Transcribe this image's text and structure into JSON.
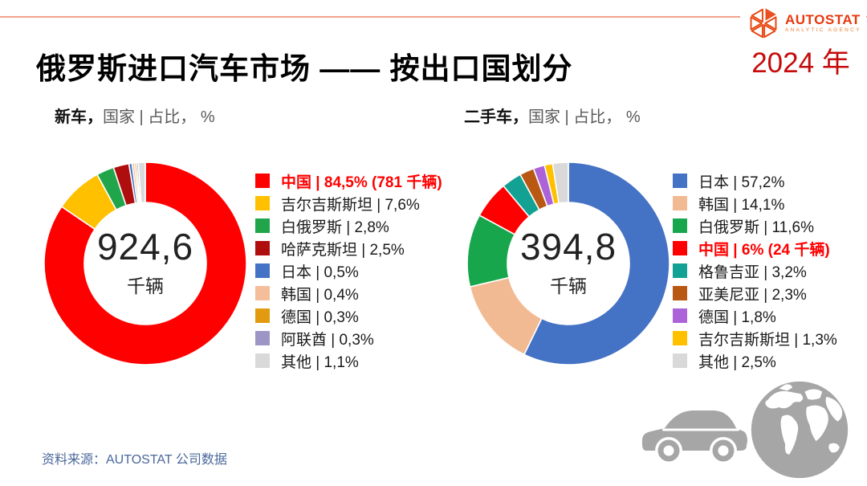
{
  "header": {
    "title": "俄罗斯进口汽车市场 —— 按出口国划分",
    "year": "2024 年",
    "logo": {
      "name": "AUTOSTAT",
      "subtitle": "ANALYTIC AGENCY"
    }
  },
  "footer": {
    "source": "资料来源：AUTOSTAT 公司数据"
  },
  "colors": {
    "accent_red": "#C50B0B",
    "top_line": "#F2A28C",
    "logo_red": "#E8380D",
    "logo_orange": "#F07D30",
    "icon_gray": "#A6A6A6",
    "source_text": "#4A679B",
    "header_gray": "#595959",
    "legend_text": "#1A1A1A",
    "highlight_red": "#FF0000"
  },
  "chart_data": [
    {
      "type": "pie",
      "variant": "donut",
      "header_bold": "新车，",
      "header_rest": "国家 | 占比， %",
      "center_value": "924,6",
      "center_unit": "千辆",
      "start_angle": "12-oclock",
      "direction": "clockwise",
      "legend_position": "right",
      "categories": [
        "中国",
        "吉尔吉斯斯坦",
        "白俄罗斯",
        "哈萨克斯坦",
        "日本",
        "韩国",
        "德国",
        "阿联酋",
        "其他"
      ],
      "values": [
        84.5,
        7.6,
        2.8,
        2.5,
        0.5,
        0.4,
        0.3,
        0.3,
        1.1
      ],
      "legend_labels": [
        "中国 |  84,5% (781 千辆)",
        "吉尔吉斯斯坦 |  7,6%",
        "白俄罗斯 |  2,8%",
        "哈萨克斯坦 |  2,5%",
        "日本 |  0,5%",
        "韩国 |  0,4%",
        "德国 |  0,3%",
        "阿联酋 |  0,3%",
        "其他 |  1,1%"
      ],
      "colors": [
        "#FF0000",
        "#FFC000",
        "#21A54A",
        "#AE0E0E",
        "#4472C4",
        "#F5BE9B",
        "#E29B11",
        "#9E95C7",
        "#D9D9D9"
      ],
      "highlight_index": 0
    },
    {
      "type": "pie",
      "variant": "donut",
      "header_bold": "二手车，",
      "header_rest": "国家 | 占比， %",
      "center_value": "394,8",
      "center_unit": "千辆",
      "start_angle": "12-oclock",
      "direction": "clockwise",
      "legend_position": "right",
      "categories": [
        "日本",
        "韩国",
        "白俄罗斯",
        "中国",
        "格鲁吉亚",
        "亚美尼亚",
        "德国",
        "吉尔吉斯斯坦",
        "其他"
      ],
      "values": [
        57.2,
        14.1,
        11.6,
        6,
        3.2,
        2.3,
        1.8,
        1.3,
        2.5
      ],
      "legend_labels": [
        "日本 |  57,2%",
        "韩国 |  14,1%",
        "白俄罗斯 |  11,6%",
        "中国 |  6% (24 千辆)",
        "格鲁吉亚 |  3,2%",
        "亚美尼亚 |  2,3%",
        "德国 |  1,8%",
        "吉尔吉斯斯坦 |  1,3%",
        "其他 |  2,5%"
      ],
      "colors": [
        "#4472C4",
        "#F2BA92",
        "#17A64C",
        "#FF0000",
        "#12A192",
        "#B85812",
        "#AC63D8",
        "#FFC000",
        "#D9D9D9"
      ],
      "highlight_index": 3
    }
  ]
}
